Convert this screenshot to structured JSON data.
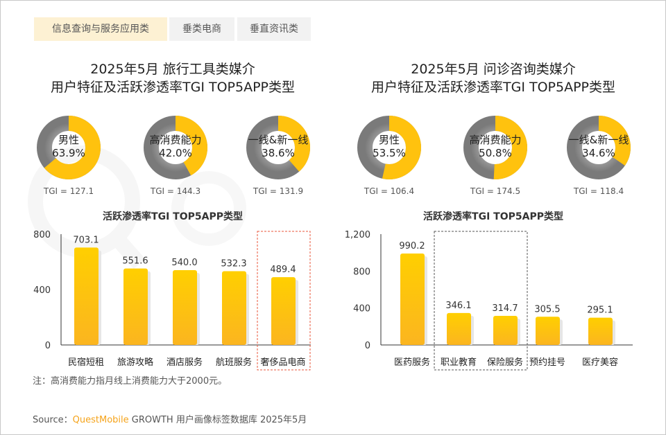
{
  "tabs": [
    {
      "label": "信息查询与服务应用类",
      "active": true
    },
    {
      "label": "垂类电商",
      "active": false
    },
    {
      "label": "垂直资讯类",
      "active": false
    }
  ],
  "watermark": "QUESTMOBILE",
  "panels": [
    {
      "title_line1": "2025年5月 旅行工具类媒介",
      "title_line2": "用户特征及活跃渗透率TGI TOP5APP类型",
      "donuts": [
        {
          "label": "男性",
          "value": 63.9,
          "pct": "63.9%",
          "tgi": "TGI = 127.1"
        },
        {
          "label": "高消费能力",
          "value": 42.0,
          "pct": "42.0%",
          "tgi": "TGI = 144.3"
        },
        {
          "label": "一线&新一线",
          "value": 38.6,
          "pct": "38.6%",
          "tgi": "TGI = 131.9"
        }
      ]
    },
    {
      "title_line1": "2025年5月 问诊咨询类媒介",
      "title_line2": "用户特征及活跃渗透率TGI TOP5APP类型",
      "donuts": [
        {
          "label": "男性",
          "value": 53.5,
          "pct": "53.5%",
          "tgi": "TGI = 106.4"
        },
        {
          "label": "高消费能力",
          "value": 50.8,
          "pct": "50.8%",
          "tgi": "TGI = 174.5"
        },
        {
          "label": "一线&新一线",
          "value": 34.6,
          "pct": "34.6%",
          "tgi": "TGI = 118.4"
        }
      ]
    }
  ],
  "chart_data": [
    {
      "type": "bar",
      "title": "活跃渗透率TGI TOP5APP类型",
      "categories": [
        "民宿短租",
        "旅游攻略",
        "酒店服务",
        "航班服务",
        "奢侈品电商"
      ],
      "values": [
        703.1,
        551.6,
        540.0,
        532.3,
        489.4
      ],
      "labels": [
        "703.1",
        "551.6",
        "540.0",
        "532.3",
        "489.4"
      ],
      "ylim": [
        0,
        800
      ],
      "yticks": [
        "0",
        "400",
        "800"
      ],
      "highlight": [
        4
      ]
    },
    {
      "type": "bar",
      "title": "活跃渗透率TGI TOP5APP类型",
      "categories": [
        "医药服务",
        "职业教育",
        "保险服务",
        "预约挂号",
        "医疗美容"
      ],
      "values": [
        990.2,
        346.1,
        314.7,
        305.5,
        295.1
      ],
      "labels": [
        "990.2",
        "346.1",
        "314.7",
        "305.5",
        "295.1"
      ],
      "ylim": [
        0,
        1200
      ],
      "yticks": [
        "0",
        "400",
        "800",
        "1,200"
      ],
      "highlight": [
        1,
        2
      ]
    }
  ],
  "note": "注：高消费能力指月线上消费能力大于2000元。",
  "source": {
    "prefix": "Source：",
    "brand": "QuestMobile",
    "rest": " GROWTH 用户画像标签数据库 2025年5月"
  },
  "colors": {
    "yellow": "#ffc20e",
    "gray": "#8a8a8a",
    "highlight": "#e8543a"
  }
}
